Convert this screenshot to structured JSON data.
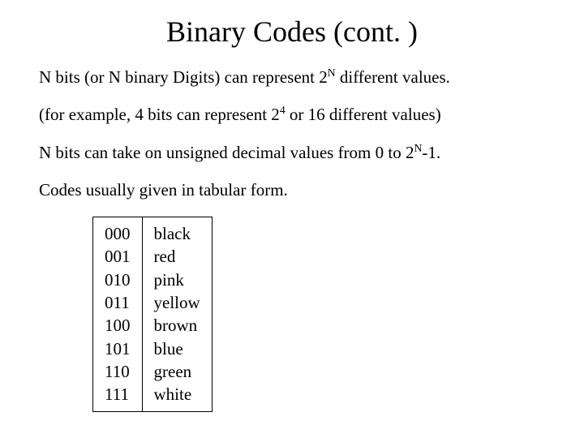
{
  "title": "Binary Codes (cont. )",
  "line1_a": "N bits (or N binary Digits) can represent 2",
  "line1_sup": "N",
  "line1_b": " different values.",
  "line2_a": "(for example, 4 bits can represent 2",
  "line2_sup": "4",
  "line2_b": " or 16 different values)",
  "line3_a": "N bits can take on unsigned decimal values from 0 to 2",
  "line3_sup": "N",
  "line3_b": "-1.",
  "line4": "Codes usually given in tabular form.",
  "table": {
    "rows": [
      {
        "code": "000",
        "color": "black"
      },
      {
        "code": "001",
        "color": "red"
      },
      {
        "code": "010",
        "color": "pink"
      },
      {
        "code": "011",
        "color": "yellow"
      },
      {
        "code": "100",
        "color": "brown"
      },
      {
        "code": "101",
        "color": "blue"
      },
      {
        "code": "110",
        "color": "green"
      },
      {
        "code": "111",
        "color": "white"
      }
    ]
  },
  "style": {
    "background_color": "#ffffff",
    "text_color": "#000000",
    "font_family": "Times New Roman",
    "title_fontsize": 36,
    "body_fontsize": 21,
    "table_border_color": "#000000"
  }
}
